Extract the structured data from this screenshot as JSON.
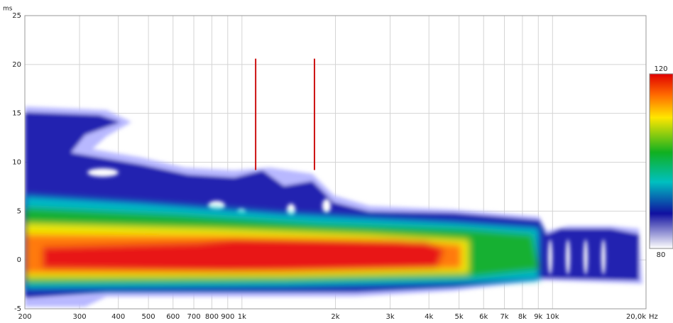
{
  "chart_data": {
    "type": "spectrogram",
    "x_unit": "Hz",
    "y_unit": "ms",
    "log_x": true,
    "grid": true,
    "xlim": [
      200,
      20000
    ],
    "xticks": [
      200,
      300,
      400,
      500,
      600,
      700,
      800,
      900,
      {
        "value": 1000,
        "label": "1k"
      },
      {
        "value": 2000,
        "label": "2k"
      },
      {
        "value": 3000,
        "label": "3k"
      },
      {
        "value": 4000,
        "label": "4k"
      },
      {
        "value": 5000,
        "label": "5k"
      },
      {
        "value": 6000,
        "label": "6k"
      },
      {
        "value": 7000,
        "label": "7k"
      },
      {
        "value": 8000,
        "label": "8k"
      },
      {
        "value": 9000,
        "label": "9k"
      },
      {
        "value": 10000,
        "label": "10k"
      },
      {
        "value": 20000,
        "label": "20,0k"
      }
    ],
    "ylim": [
      -5,
      25
    ],
    "yticks": [
      -5,
      0,
      5,
      10,
      15,
      20,
      25
    ],
    "colorbar": {
      "clim": [
        80,
        120
      ],
      "ticks": [
        120,
        80
      ]
    },
    "markers": [
      {
        "x": 1107,
        "ymin": 9.2,
        "ymax": 20.6,
        "color": "#cc1111"
      },
      {
        "x": 1712,
        "ymin": 9.2,
        "ymax": 20.6,
        "color": "#cc1111"
      }
    ]
  }
}
